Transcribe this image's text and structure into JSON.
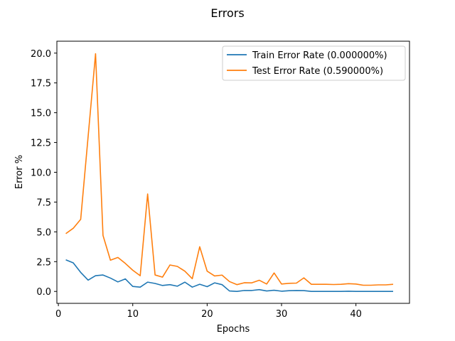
{
  "chart_data": {
    "type": "line",
    "title": "Errors",
    "xlabel": "Epochs",
    "ylabel": "Error %",
    "xlim": [
      -0.2,
      47.2
    ],
    "ylim": [
      -1.0,
      21.0
    ],
    "xticks": [
      0,
      10,
      20,
      30,
      40
    ],
    "yticks": [
      0.0,
      2.5,
      5.0,
      7.5,
      10.0,
      12.5,
      15.0,
      17.5,
      20.0
    ],
    "grid": false,
    "legend": "top-right",
    "x": [
      1,
      2,
      3,
      4,
      5,
      6,
      7,
      8,
      9,
      10,
      11,
      12,
      13,
      14,
      15,
      16,
      17,
      18,
      19,
      20,
      21,
      22,
      23,
      24,
      25,
      26,
      27,
      28,
      29,
      30,
      31,
      32,
      33,
      34,
      35,
      36,
      37,
      38,
      39,
      40,
      41,
      42,
      43,
      44,
      45
    ],
    "series": [
      {
        "name": "Train Error Rate (0.000000%)",
        "color": "#1f77b4",
        "values": [
          2.65,
          2.4,
          1.6,
          0.95,
          1.32,
          1.38,
          1.12,
          0.8,
          1.05,
          0.42,
          0.36,
          0.78,
          0.67,
          0.5,
          0.57,
          0.44,
          0.78,
          0.36,
          0.6,
          0.4,
          0.72,
          0.57,
          0.04,
          0.0,
          0.08,
          0.08,
          0.15,
          0.04,
          0.1,
          0.02,
          0.06,
          0.08,
          0.07,
          0.0,
          0.0,
          0.0,
          0.0,
          0.0,
          0.02,
          0.0,
          0.0,
          0.0,
          0.0,
          0.0,
          0.0
        ]
      },
      {
        "name": "Test Error Rate (0.590000%)",
        "color": "#ff7f0e",
        "values": [
          4.85,
          5.3,
          6.05,
          13.0,
          19.95,
          4.7,
          2.62,
          2.85,
          2.35,
          1.78,
          1.32,
          8.18,
          1.38,
          1.2,
          2.22,
          2.1,
          1.7,
          1.07,
          3.75,
          1.7,
          1.3,
          1.37,
          0.83,
          0.57,
          0.73,
          0.72,
          0.94,
          0.62,
          1.55,
          0.62,
          0.68,
          0.7,
          1.14,
          0.6,
          0.6,
          0.6,
          0.58,
          0.6,
          0.65,
          0.62,
          0.52,
          0.52,
          0.55,
          0.55,
          0.6
        ]
      }
    ]
  }
}
